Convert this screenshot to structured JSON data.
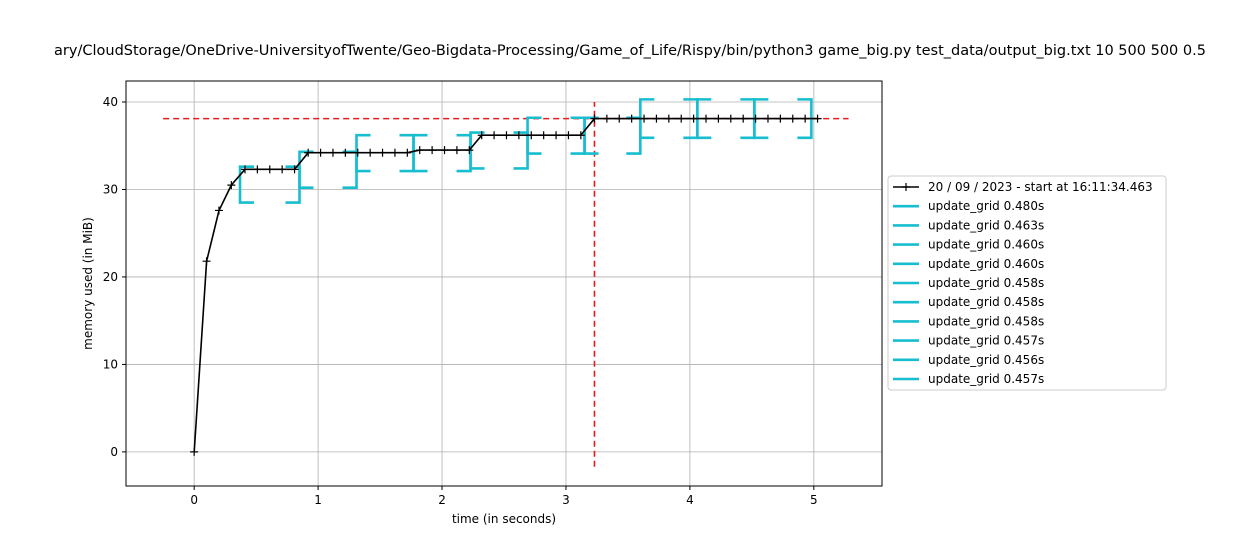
{
  "chart_data": {
    "type": "line",
    "title": "ary/CloudStorage/OneDrive-UniversityofTwente/Geo-Bigdata-Processing/Game_of_Life/Rispy/bin/python3 game_big.py test_data/output_big.txt 10 500 500 0.5",
    "xlabel": "time (in seconds)",
    "ylabel": "memory used (in MiB)",
    "xlim": [
      -0.55,
      5.55
    ],
    "ylim": [
      -3.9,
      42.4
    ],
    "xticks": [
      0,
      1,
      2,
      3,
      4,
      5
    ],
    "yticks": [
      0,
      10,
      20,
      30,
      40
    ],
    "xtick_labels": [
      "0",
      "1",
      "2",
      "3",
      "4",
      "5"
    ],
    "ytick_labels": [
      "0",
      "10",
      "20",
      "30",
      "40"
    ],
    "grid": true,
    "legend_position": "right, outside plot",
    "colors": {
      "memory_line": "#000000",
      "brackets": "#17becf",
      "max_lines": "#e41a1c",
      "grid": "#b0b0b0"
    },
    "series": [
      {
        "name": "20 / 09 / 2023 - start at 16:11:34.463",
        "x": [
          0.0,
          0.1,
          0.2,
          0.3,
          0.41,
          0.51,
          0.61,
          0.71,
          0.81,
          0.92,
          1.02,
          1.12,
          1.22,
          1.32,
          1.42,
          1.52,
          1.62,
          1.72,
          1.82,
          1.92,
          2.02,
          2.12,
          2.22,
          2.32,
          2.42,
          2.52,
          2.62,
          2.72,
          2.82,
          2.92,
          3.02,
          3.12,
          3.23,
          3.33,
          3.43,
          3.53,
          3.63,
          3.73,
          3.83,
          3.93,
          4.03,
          4.13,
          4.23,
          4.33,
          4.43,
          4.53,
          4.63,
          4.73,
          4.83,
          4.93,
          5.03
        ],
        "y": [
          0.0,
          21.8,
          27.6,
          30.5,
          32.3,
          32.3,
          32.3,
          32.3,
          32.3,
          34.2,
          34.2,
          34.2,
          34.2,
          34.2,
          34.2,
          34.2,
          34.2,
          34.2,
          34.5,
          34.5,
          34.5,
          34.5,
          34.5,
          36.2,
          36.2,
          36.2,
          36.2,
          36.2,
          36.2,
          36.2,
          36.2,
          36.2,
          38.1,
          38.1,
          38.1,
          38.1,
          38.1,
          38.1,
          38.1,
          38.1,
          38.1,
          38.1,
          38.1,
          38.1,
          38.1,
          38.1,
          38.1,
          38.1,
          38.1,
          38.1,
          38.1
        ]
      }
    ],
    "brackets": [
      {
        "label": "update_grid 0.480s",
        "x_start": 0.37,
        "x_end": 0.85,
        "y_low": 28.5,
        "y_high": 32.6
      },
      {
        "label": "update_grid 0.463s",
        "x_start": 0.85,
        "x_end": 1.31,
        "y_low": 30.2,
        "y_high": 34.3
      },
      {
        "label": "update_grid 0.460s",
        "x_start": 1.31,
        "x_end": 1.77,
        "y_low": 32.1,
        "y_high": 36.2
      },
      {
        "label": "update_grid 0.460s",
        "x_start": 1.77,
        "x_end": 2.23,
        "y_low": 32.1,
        "y_high": 36.2
      },
      {
        "label": "update_grid 0.458s",
        "x_start": 2.23,
        "x_end": 2.69,
        "y_low": 32.4,
        "y_high": 36.5
      },
      {
        "label": "update_grid 0.458s",
        "x_start": 2.69,
        "x_end": 3.15,
        "y_low": 34.1,
        "y_high": 38.2
      },
      {
        "label": "update_grid 0.458s",
        "x_start": 3.15,
        "x_end": 3.6,
        "y_low": 34.1,
        "y_high": 38.2
      },
      {
        "label": "update_grid 0.457s",
        "x_start": 3.6,
        "x_end": 4.06,
        "y_low": 35.9,
        "y_high": 40.3
      },
      {
        "label": "update_grid 0.456s",
        "x_start": 4.06,
        "x_end": 4.52,
        "y_low": 35.9,
        "y_high": 40.3
      },
      {
        "label": "update_grid 0.457s",
        "x_start": 4.52,
        "x_end": 4.98,
        "y_low": 35.9,
        "y_high": 40.3
      }
    ],
    "max_memory_line": {
      "y": 38.1,
      "x_from": -0.25,
      "x_to": 5.28
    },
    "max_time_line": {
      "x": 3.23,
      "y_from": -1.7,
      "y_to": 40.0
    }
  }
}
